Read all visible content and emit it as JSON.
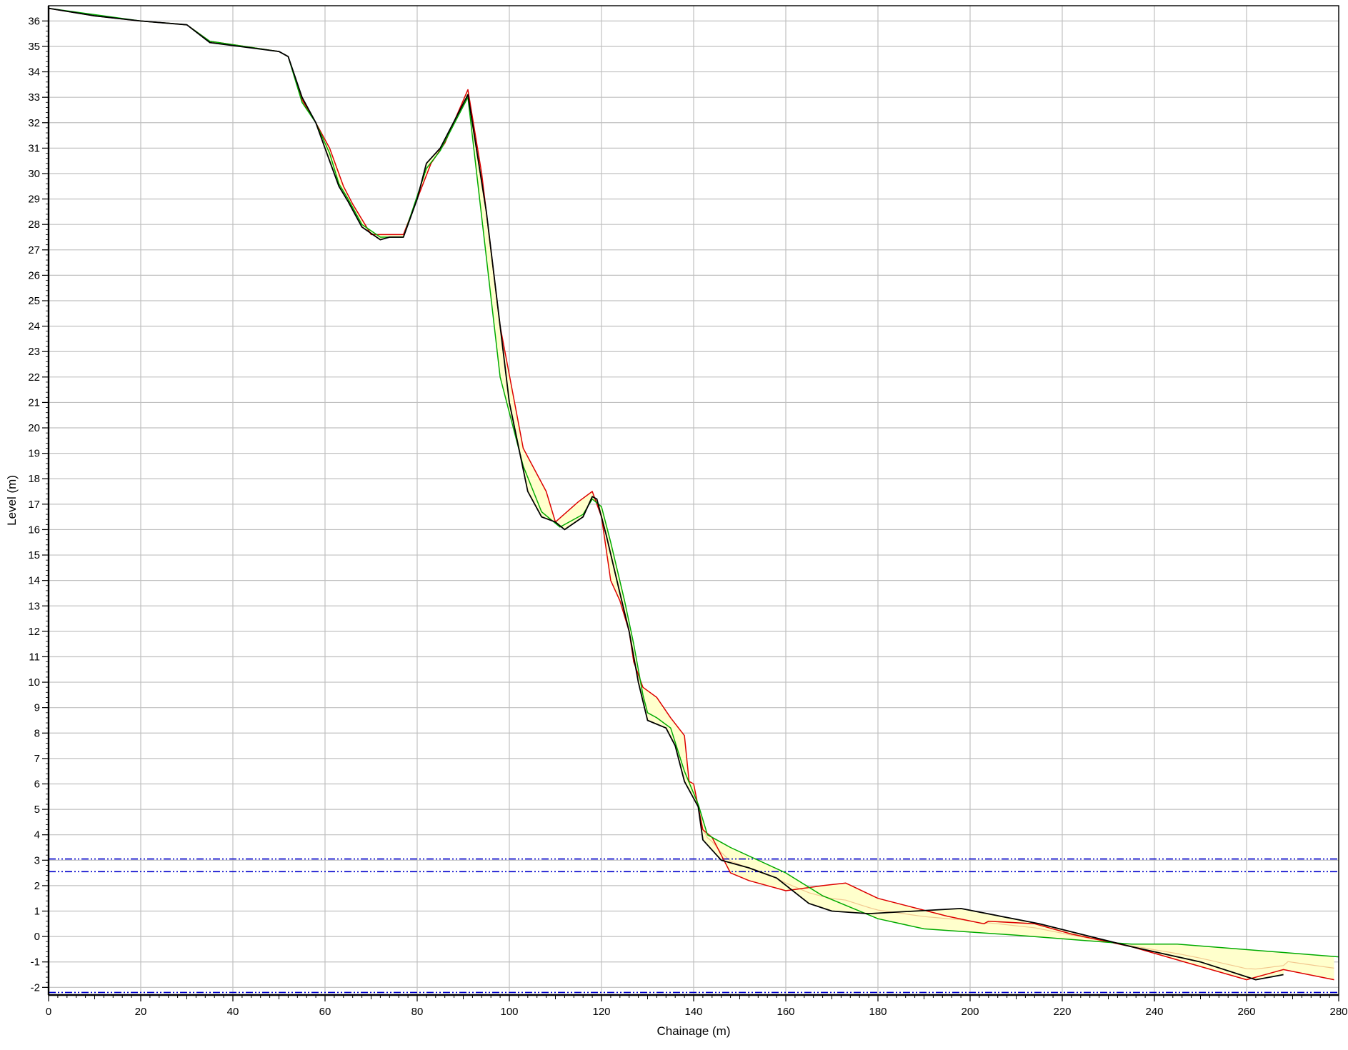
{
  "chart_data": {
    "type": "line",
    "title": "",
    "xlabel": "Chainage (m)",
    "ylabel": "Level (m)",
    "xlim": [
      0,
      280
    ],
    "ylim": [
      -2.3,
      36.6
    ],
    "grid": true,
    "legend": "none",
    "x_ticks": [
      0,
      20,
      40,
      60,
      80,
      100,
      120,
      140,
      160,
      180,
      200,
      220,
      240,
      260,
      280
    ],
    "y_ticks": [
      -2,
      -1,
      0,
      1,
      2,
      3,
      4,
      5,
      6,
      7,
      8,
      9,
      10,
      11,
      12,
      13,
      14,
      15,
      16,
      17,
      18,
      19,
      20,
      21,
      22,
      23,
      24,
      25,
      26,
      27,
      28,
      29,
      30,
      31,
      32,
      33,
      34,
      35,
      36
    ],
    "colors": {
      "black_profile": "#000000",
      "green_profile": "#00aa00",
      "red_profile": "#dd0000",
      "fill": "#ffffcc",
      "fill_edge": "#f2c890",
      "water_level": "#0000cc",
      "grid": "#c0c0c0"
    },
    "horizontal_lines": [
      {
        "y": 3.05,
        "style": "dash-dot-dot"
      },
      {
        "y": 2.55,
        "style": "dash-dot-dot"
      },
      {
        "y": -2.2,
        "style": "dash-dot-dot"
      }
    ],
    "series": [
      {
        "color": "black",
        "points": [
          [
            0,
            36.5
          ],
          [
            10,
            36.2
          ],
          [
            20,
            36.0
          ],
          [
            30,
            35.85
          ],
          [
            35,
            35.15
          ],
          [
            50,
            34.8
          ],
          [
            52,
            34.6
          ],
          [
            55,
            33
          ],
          [
            58,
            32
          ],
          [
            61,
            30.5
          ],
          [
            63,
            29.5
          ],
          [
            65,
            28.9
          ],
          [
            68,
            27.9
          ],
          [
            72,
            27.4
          ],
          [
            74,
            27.5
          ],
          [
            77,
            27.5
          ],
          [
            80,
            29
          ],
          [
            82,
            30.4
          ],
          [
            85,
            31
          ],
          [
            91,
            33.1
          ],
          [
            95,
            28.5
          ],
          [
            100,
            21
          ],
          [
            104,
            17.5
          ],
          [
            107,
            16.5
          ],
          [
            110,
            16.3
          ],
          [
            112,
            16.0
          ],
          [
            116,
            16.5
          ],
          [
            118,
            17.3
          ],
          [
            119,
            17.2
          ],
          [
            121,
            15.8
          ],
          [
            124,
            13.5
          ],
          [
            126,
            12
          ],
          [
            128,
            10
          ],
          [
            130,
            8.5
          ],
          [
            134,
            8.2
          ],
          [
            136,
            7.5
          ],
          [
            138,
            6.1
          ],
          [
            141,
            5.1
          ],
          [
            142,
            3.8
          ],
          [
            146,
            3.0
          ],
          [
            152,
            2.7
          ],
          [
            158,
            2.3
          ],
          [
            165,
            1.3
          ],
          [
            170,
            1.0
          ],
          [
            178,
            0.9
          ],
          [
            198,
            1.1
          ],
          [
            215,
            0.5
          ],
          [
            235,
            -0.4
          ],
          [
            250,
            -1.0
          ],
          [
            262,
            -1.7
          ],
          [
            268,
            -1.5
          ]
        ]
      },
      {
        "color": "green",
        "points": [
          [
            0,
            36.5
          ],
          [
            10,
            36.25
          ],
          [
            20,
            36.0
          ],
          [
            30,
            35.85
          ],
          [
            35,
            35.2
          ],
          [
            50,
            34.8
          ],
          [
            52,
            34.6
          ],
          [
            55,
            32.8
          ],
          [
            58,
            32
          ],
          [
            61,
            30.8
          ],
          [
            63,
            29.6
          ],
          [
            65,
            29
          ],
          [
            68,
            28.0
          ],
          [
            72,
            27.5
          ],
          [
            77,
            27.5
          ],
          [
            82,
            30.2
          ],
          [
            85,
            30.9
          ],
          [
            91,
            33.0
          ],
          [
            98,
            22
          ],
          [
            103,
            18.5
          ],
          [
            107,
            16.7
          ],
          [
            111,
            16.1
          ],
          [
            116,
            16.6
          ],
          [
            118,
            17.2
          ],
          [
            120,
            16.9
          ],
          [
            122,
            15.5
          ],
          [
            125,
            13.2
          ],
          [
            127,
            11.5
          ],
          [
            129,
            9.5
          ],
          [
            130,
            8.8
          ],
          [
            132,
            8.6
          ],
          [
            135,
            8.2
          ],
          [
            138,
            6.5
          ],
          [
            141,
            5.2
          ],
          [
            143,
            4.0
          ],
          [
            148,
            3.5
          ],
          [
            160,
            2.5
          ],
          [
            168,
            1.6
          ],
          [
            180,
            0.7
          ],
          [
            190,
            0.3
          ],
          [
            210,
            0.05
          ],
          [
            235,
            -0.3
          ],
          [
            245,
            -0.3
          ],
          [
            280,
            -0.8
          ]
        ]
      },
      {
        "color": "red",
        "points": [
          [
            0,
            36.5
          ],
          [
            10,
            36.2
          ],
          [
            20,
            36.0
          ],
          [
            30,
            35.85
          ],
          [
            35,
            35.2
          ],
          [
            50,
            34.8
          ],
          [
            52,
            34.6
          ],
          [
            55,
            32.9
          ],
          [
            58,
            32
          ],
          [
            61,
            31
          ],
          [
            64,
            29.5
          ],
          [
            66,
            28.8
          ],
          [
            70,
            27.6
          ],
          [
            77,
            27.6
          ],
          [
            80,
            29
          ],
          [
            83,
            30.4
          ],
          [
            86,
            31.2
          ],
          [
            91,
            33.3
          ],
          [
            94,
            30
          ],
          [
            98,
            24
          ],
          [
            103,
            19.2
          ],
          [
            108,
            17.5
          ],
          [
            110,
            16.3
          ],
          [
            115,
            17.1
          ],
          [
            118,
            17.5
          ],
          [
            120,
            16.5
          ],
          [
            122,
            14.0
          ],
          [
            124,
            13.2
          ],
          [
            126,
            12.0
          ],
          [
            127,
            10.8
          ],
          [
            129,
            9.8
          ],
          [
            132,
            9.4
          ],
          [
            135,
            8.6
          ],
          [
            138,
            7.9
          ],
          [
            139,
            6.1
          ],
          [
            140,
            6.0
          ],
          [
            142,
            4.2
          ],
          [
            144,
            3.9
          ],
          [
            148,
            2.5
          ],
          [
            152,
            2.2
          ],
          [
            160,
            1.8
          ],
          [
            168,
            2.0
          ],
          [
            173,
            2.1
          ],
          [
            180,
            1.5
          ],
          [
            195,
            0.8
          ],
          [
            203,
            0.5
          ],
          [
            204,
            0.6
          ],
          [
            214,
            0.5
          ],
          [
            222,
            0.1
          ],
          [
            235,
            -0.4
          ],
          [
            260,
            -1.7
          ],
          [
            268,
            -1.3
          ],
          [
            279,
            -1.7
          ]
        ]
      }
    ]
  }
}
